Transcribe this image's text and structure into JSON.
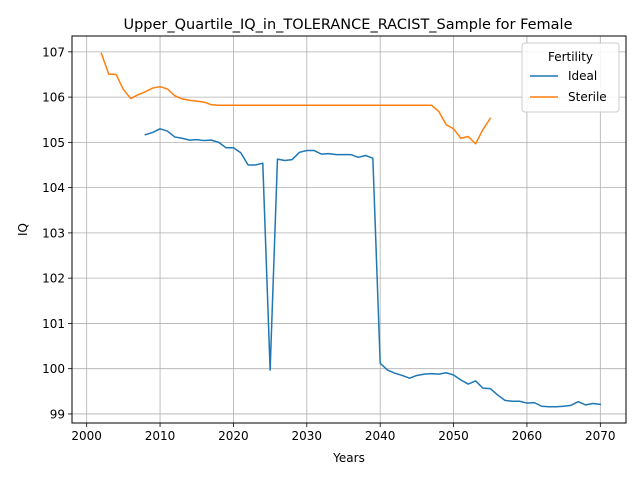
{
  "chart_data": {
    "type": "line",
    "title": "Upper_Quartile_IQ_in_TOLERANCE_RACIST_Sample for Female",
    "xlabel": "Years",
    "ylabel": "IQ",
    "xlim": [
      1998,
      2073.5
    ],
    "ylim": [
      98.8,
      107.35
    ],
    "xticks": [
      2000,
      2010,
      2020,
      2030,
      2040,
      2050,
      2060,
      2070
    ],
    "yticks": [
      99,
      100,
      101,
      102,
      103,
      104,
      105,
      106,
      107
    ],
    "grid": true,
    "legend": {
      "title": "Fertility",
      "placement": "top-right"
    },
    "series": [
      {
        "name": "Ideal",
        "color": "#1f77b4",
        "x": [
          2008,
          2009,
          2010,
          2011,
          2012,
          2013,
          2014,
          2015,
          2016,
          2017,
          2018,
          2019,
          2020,
          2021,
          2022,
          2023,
          2024,
          2025,
          2026,
          2027,
          2028,
          2029,
          2030,
          2031,
          2032,
          2033,
          2034,
          2035,
          2036,
          2037,
          2038,
          2039,
          2040,
          2041,
          2042,
          2043,
          2044,
          2045,
          2046,
          2047,
          2048,
          2049,
          2050,
          2051,
          2052,
          2053,
          2054,
          2055,
          2056,
          2057,
          2058,
          2059,
          2060,
          2061,
          2062,
          2063,
          2064,
          2065,
          2066,
          2067,
          2068,
          2069,
          2070
        ],
        "values": [
          105.17,
          105.22,
          105.3,
          105.25,
          105.12,
          105.09,
          105.05,
          105.06,
          105.04,
          105.05,
          105.0,
          104.88,
          104.88,
          104.77,
          104.5,
          104.5,
          104.54,
          99.97,
          104.63,
          104.6,
          104.62,
          104.78,
          104.82,
          104.82,
          104.74,
          104.75,
          104.73,
          104.73,
          104.73,
          104.67,
          104.71,
          104.65,
          100.12,
          99.97,
          99.9,
          99.85,
          99.79,
          99.85,
          99.88,
          99.89,
          99.88,
          99.91,
          99.86,
          99.75,
          99.66,
          99.73,
          99.57,
          99.56,
          99.42,
          99.3,
          99.28,
          99.28,
          99.24,
          99.25,
          99.17,
          99.16,
          99.16,
          99.17,
          99.19,
          99.27,
          99.2,
          99.23,
          99.21
        ]
      },
      {
        "name": "Sterile",
        "color": "#ff7f0e",
        "x": [
          2002,
          2003,
          2004,
          2005,
          2006,
          2007,
          2008,
          2009,
          2010,
          2011,
          2012,
          2013,
          2014,
          2015,
          2016,
          2017,
          2018,
          2019,
          2020,
          2021,
          2022,
          2023,
          2024,
          2025,
          2026,
          2027,
          2028,
          2029,
          2030,
          2031,
          2032,
          2033,
          2034,
          2035,
          2036,
          2037,
          2038,
          2039,
          2040,
          2041,
          2042,
          2043,
          2044,
          2045,
          2046,
          2047,
          2048,
          2049,
          2050,
          2051,
          2052,
          2053,
          2054,
          2055
        ],
        "values": [
          106.97,
          106.51,
          106.5,
          106.17,
          105.97,
          106.05,
          106.12,
          106.2,
          106.23,
          106.18,
          106.03,
          105.96,
          105.93,
          105.91,
          105.89,
          105.83,
          105.82,
          105.82,
          105.82,
          105.82,
          105.82,
          105.82,
          105.82,
          105.82,
          105.82,
          105.82,
          105.82,
          105.82,
          105.82,
          105.82,
          105.82,
          105.82,
          105.82,
          105.82,
          105.82,
          105.82,
          105.82,
          105.82,
          105.82,
          105.82,
          105.82,
          105.82,
          105.82,
          105.82,
          105.82,
          105.82,
          105.68,
          105.39,
          105.3,
          105.09,
          105.13,
          104.97,
          105.28,
          105.53
        ]
      }
    ]
  }
}
